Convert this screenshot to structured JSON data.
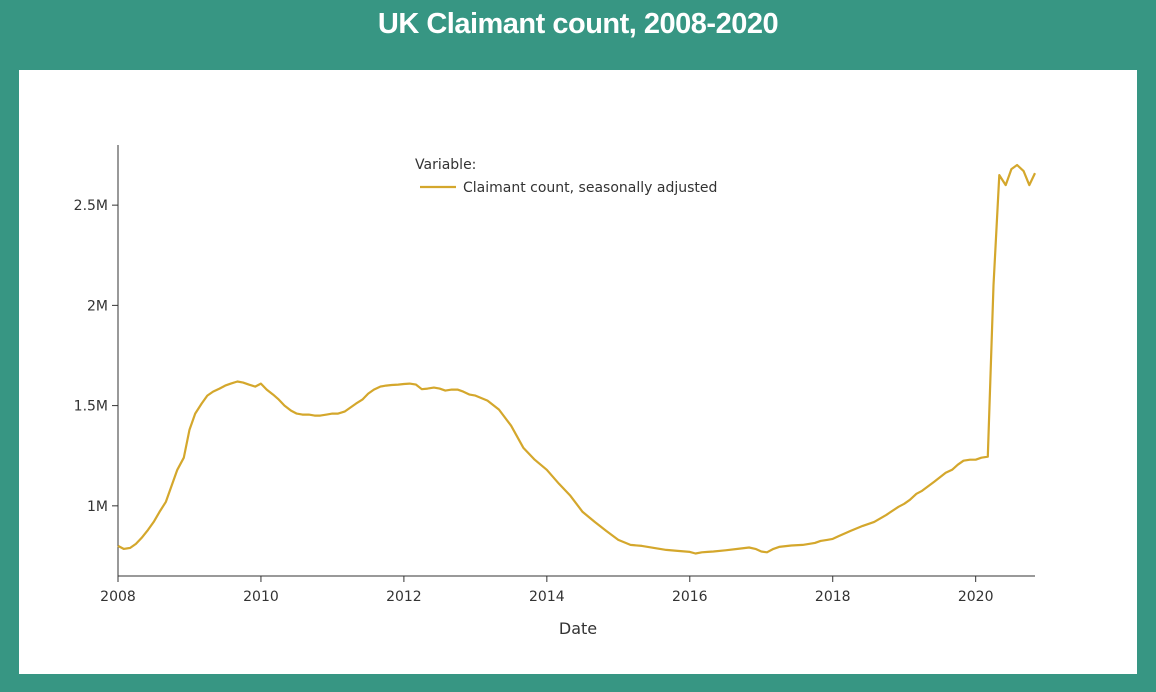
{
  "page": {
    "title": "UK Claimant count, 2008-2020"
  },
  "colors": {
    "background": "#379683",
    "panel": "#ffffff",
    "line": "#D4A72C",
    "axis": "#333333"
  },
  "chart_data": {
    "type": "line",
    "xlabel": "Date",
    "ylabel": "",
    "x_ticks": [
      2008,
      2010,
      2012,
      2014,
      2016,
      2018,
      2020
    ],
    "x_tick_labels": [
      "2008",
      "2010",
      "2012",
      "2014",
      "2016",
      "2018",
      "2020"
    ],
    "y_ticks": [
      1000000,
      1500000,
      2000000,
      2500000
    ],
    "y_tick_labels": [
      "1M",
      "1.5M",
      "2M",
      "2.5M"
    ],
    "xlim": [
      2008,
      2020.83
    ],
    "ylim": [
      650000,
      2800000
    ],
    "grid": false,
    "legend": {
      "title": "Variable:",
      "placement": "top-center"
    },
    "series": [
      {
        "name": "Claimant count, seasonally adjusted",
        "x": [
          2008.0,
          2008.08,
          2008.17,
          2008.25,
          2008.33,
          2008.42,
          2008.5,
          2008.58,
          2008.67,
          2008.75,
          2008.83,
          2008.92,
          2009.0,
          2009.08,
          2009.17,
          2009.25,
          2009.33,
          2009.42,
          2009.5,
          2009.58,
          2009.67,
          2009.75,
          2009.83,
          2009.92,
          2010.0,
          2010.08,
          2010.17,
          2010.25,
          2010.33,
          2010.42,
          2010.5,
          2010.58,
          2010.67,
          2010.75,
          2010.83,
          2010.92,
          2011.0,
          2011.08,
          2011.17,
          2011.25,
          2011.33,
          2011.42,
          2011.5,
          2011.58,
          2011.67,
          2011.75,
          2011.83,
          2011.92,
          2012.0,
          2012.08,
          2012.17,
          2012.25,
          2012.33,
          2012.42,
          2012.5,
          2012.58,
          2012.67,
          2012.75,
          2012.83,
          2012.92,
          2013.0,
          2013.17,
          2013.33,
          2013.5,
          2013.67,
          2013.83,
          2014.0,
          2014.17,
          2014.33,
          2014.5,
          2014.67,
          2014.83,
          2015.0,
          2015.17,
          2015.33,
          2015.5,
          2015.67,
          2015.83,
          2016.0,
          2016.08,
          2016.17,
          2016.25,
          2016.33,
          2016.5,
          2016.67,
          2016.83,
          2016.92,
          2017.0,
          2017.08,
          2017.17,
          2017.25,
          2017.42,
          2017.58,
          2017.75,
          2017.83,
          2017.92,
          2018.0,
          2018.08,
          2018.25,
          2018.42,
          2018.58,
          2018.75,
          2018.92,
          2019.0,
          2019.08,
          2019.17,
          2019.25,
          2019.42,
          2019.58,
          2019.67,
          2019.75,
          2019.83,
          2019.92,
          2020.0,
          2020.08,
          2020.17,
          2020.25,
          2020.33,
          2020.42,
          2020.5,
          2020.58,
          2020.67,
          2020.75,
          2020.83
        ],
        "values": [
          800000,
          785000,
          790000,
          810000,
          840000,
          880000,
          920000,
          970000,
          1020000,
          1100000,
          1180000,
          1240000,
          1380000,
          1460000,
          1510000,
          1550000,
          1570000,
          1585000,
          1600000,
          1610000,
          1620000,
          1615000,
          1605000,
          1595000,
          1610000,
          1580000,
          1555000,
          1530000,
          1500000,
          1475000,
          1460000,
          1455000,
          1455000,
          1450000,
          1450000,
          1455000,
          1460000,
          1460000,
          1470000,
          1490000,
          1510000,
          1530000,
          1560000,
          1580000,
          1595000,
          1600000,
          1603000,
          1605000,
          1608000,
          1610000,
          1605000,
          1582000,
          1585000,
          1590000,
          1585000,
          1575000,
          1580000,
          1580000,
          1570000,
          1555000,
          1550000,
          1525000,
          1480000,
          1400000,
          1290000,
          1230000,
          1180000,
          1110000,
          1050000,
          970000,
          920000,
          875000,
          830000,
          805000,
          800000,
          790000,
          780000,
          775000,
          770000,
          762000,
          768000,
          770000,
          772000,
          778000,
          785000,
          792000,
          785000,
          772000,
          768000,
          785000,
          795000,
          802000,
          805000,
          815000,
          825000,
          830000,
          835000,
          848000,
          875000,
          900000,
          920000,
          955000,
          995000,
          1010000,
          1030000,
          1060000,
          1075000,
          1120000,
          1165000,
          1180000,
          1205000,
          1225000,
          1230000,
          1230000,
          1240000,
          1245000,
          2100000,
          2650000,
          2600000,
          2680000,
          2700000,
          2670000,
          2600000,
          2660000
        ]
      }
    ]
  }
}
